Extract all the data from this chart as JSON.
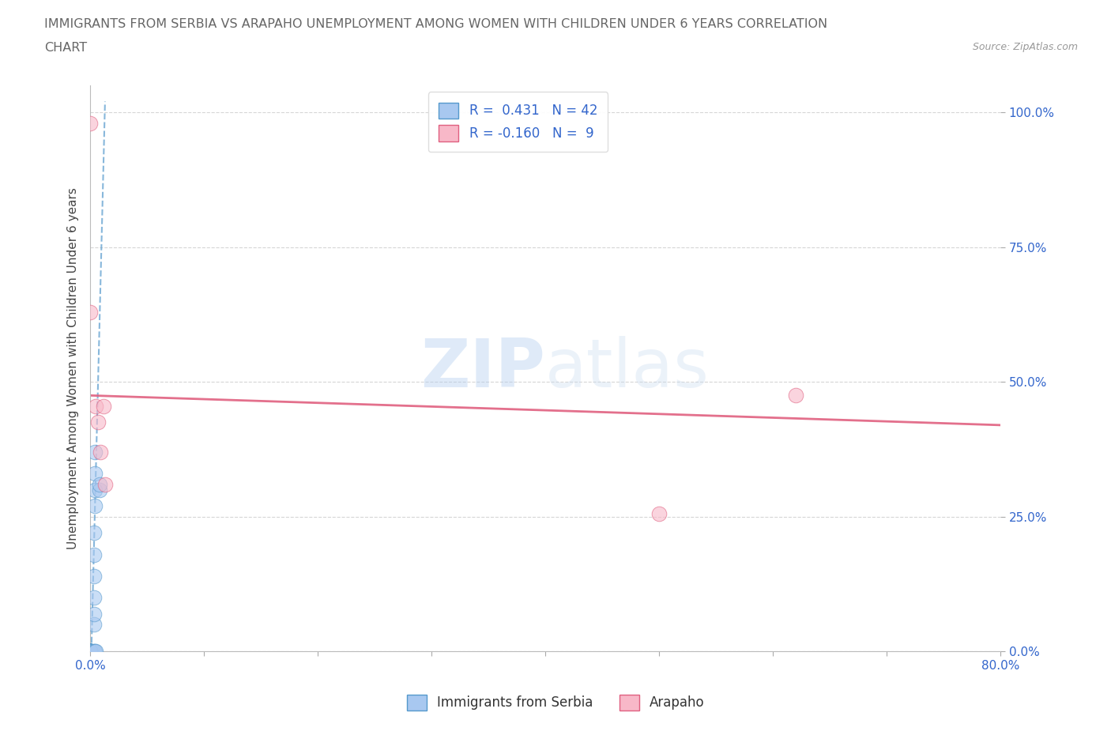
{
  "title_line1": "IMMIGRANTS FROM SERBIA VS ARAPAHO UNEMPLOYMENT AMONG WOMEN WITH CHILDREN UNDER 6 YEARS CORRELATION",
  "title_line2": "CHART",
  "source": "Source: ZipAtlas.com",
  "ylabel": "Unemployment Among Women with Children Under 6 years",
  "xlim": [
    0,
    0.8
  ],
  "ylim": [
    0,
    1.05
  ],
  "r_blue": 0.431,
  "n_blue": 42,
  "r_pink": -0.16,
  "n_pink": 9,
  "blue_color": "#a8c8f0",
  "blue_line_color": "#5599cc",
  "pink_color": "#f8b8c8",
  "pink_line_color": "#e06080",
  "blue_scatter": [
    [
      0.0,
      0.0
    ],
    [
      0.0,
      0.0
    ],
    [
      0.0,
      0.0
    ],
    [
      0.0,
      0.0
    ],
    [
      0.0,
      0.0
    ],
    [
      0.0,
      0.0
    ],
    [
      0.0,
      0.0
    ],
    [
      0.0,
      0.0
    ],
    [
      0.0,
      0.0
    ],
    [
      0.0,
      0.0
    ],
    [
      0.0,
      0.0
    ],
    [
      0.0,
      0.0
    ],
    [
      0.0,
      0.0
    ],
    [
      0.0,
      0.0
    ],
    [
      0.0,
      0.0
    ],
    [
      0.0,
      0.0
    ],
    [
      0.0,
      0.0
    ],
    [
      0.0,
      0.0
    ],
    [
      0.0,
      0.0
    ],
    [
      0.0,
      0.0
    ],
    [
      0.0,
      0.0
    ],
    [
      0.0,
      0.0
    ],
    [
      0.0,
      0.0
    ],
    [
      0.0,
      0.0
    ],
    [
      0.0,
      0.0
    ],
    [
      0.0,
      0.0
    ],
    [
      0.002,
      0.0
    ],
    [
      0.003,
      0.0
    ],
    [
      0.004,
      0.0
    ],
    [
      0.005,
      0.0
    ],
    [
      0.003,
      0.05
    ],
    [
      0.003,
      0.07
    ],
    [
      0.003,
      0.1
    ],
    [
      0.003,
      0.14
    ],
    [
      0.003,
      0.18
    ],
    [
      0.003,
      0.22
    ],
    [
      0.004,
      0.27
    ],
    [
      0.004,
      0.3
    ],
    [
      0.004,
      0.33
    ],
    [
      0.004,
      0.37
    ],
    [
      0.008,
      0.3
    ],
    [
      0.008,
      0.31
    ]
  ],
  "pink_scatter": [
    [
      0.0,
      0.98
    ],
    [
      0.0,
      0.63
    ],
    [
      0.005,
      0.455
    ],
    [
      0.007,
      0.425
    ],
    [
      0.009,
      0.37
    ],
    [
      0.012,
      0.455
    ],
    [
      0.013,
      0.31
    ],
    [
      0.62,
      0.475
    ],
    [
      0.5,
      0.255
    ]
  ],
  "blue_trend": [
    0.001,
    0.0,
    0.013,
    1.02
  ],
  "pink_trend_x": [
    0.0,
    0.8
  ],
  "pink_trend_y_start": 0.475,
  "pink_trend_y_end": 0.42,
  "watermark_zip": "ZIP",
  "watermark_atlas": "atlas",
  "legend_blue_label": "Immigrants from Serbia",
  "legend_pink_label": "Arapaho",
  "background_color": "#ffffff",
  "grid_color": "#cccccc"
}
